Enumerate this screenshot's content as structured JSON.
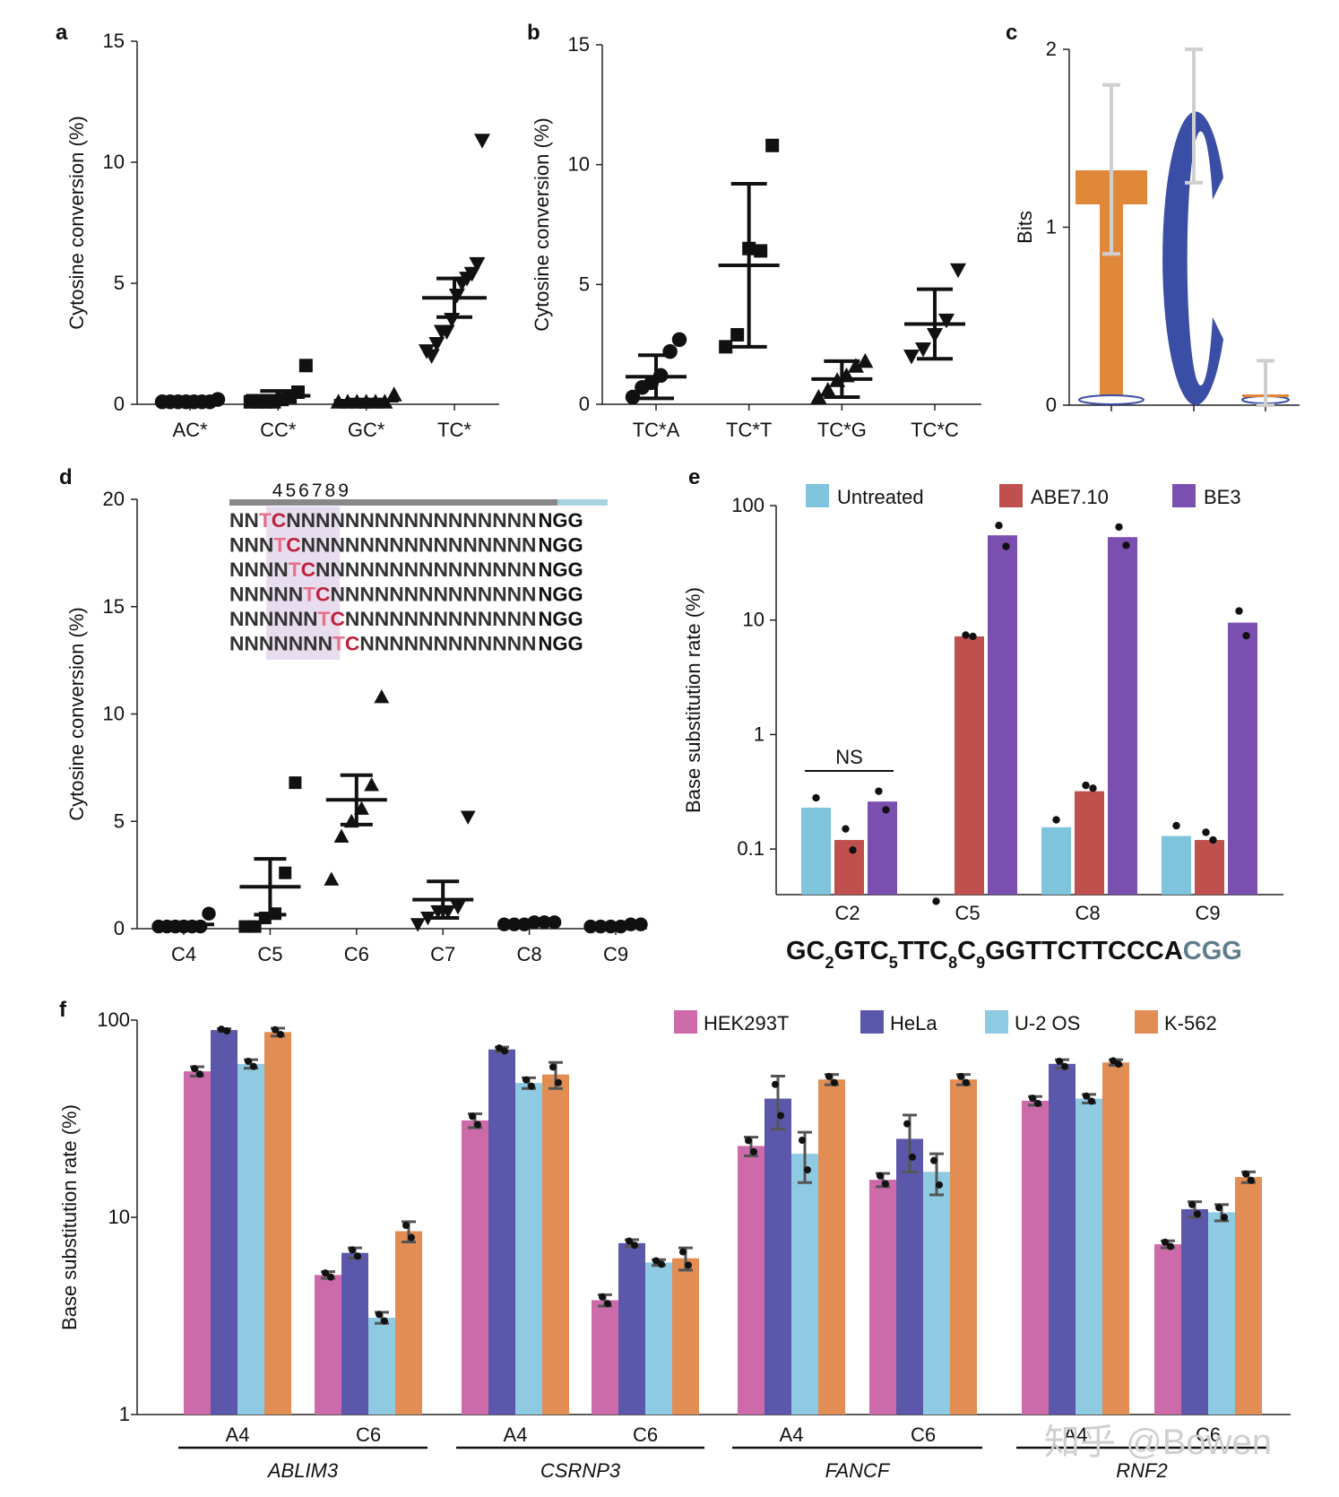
{
  "panels": {
    "a": "a",
    "b": "b",
    "c": "c",
    "d": "d",
    "e": "e",
    "f": "f"
  },
  "watermark": "知乎 @Bowen",
  "colors": {
    "untreated": "#7ec4dc",
    "abe": "#c0504d",
    "be3": "#7b4fb0",
    "hek": "#cc6aaa",
    "hela": "#5b58ab",
    "u2os": "#8ecae2",
    "k562": "#e18d53",
    "logo_t": "#e0883a",
    "logo_c": "#3b4ea5",
    "grid": "#222"
  },
  "chart_data": [
    {
      "id": "a",
      "type": "scatter",
      "ylabel": "Cytosine conversion (%)",
      "ylim": [
        0,
        15
      ],
      "yticks": [
        "0",
        "5",
        "10",
        "15"
      ],
      "categories": [
        "AC*",
        "CC*",
        "GC*",
        "TC*"
      ],
      "markers": [
        "circle",
        "square",
        "triangle-up",
        "triangle-down"
      ],
      "points": [
        [
          0.1,
          0.1,
          0.1,
          0.1,
          0.1,
          0.1,
          0.1,
          0.2
        ],
        [
          0.1,
          0.1,
          0.1,
          0.1,
          0.2,
          0.3,
          0.5,
          1.6
        ],
        [
          0.1,
          0.1,
          0.1,
          0.1,
          0.1,
          0.1,
          0.4
        ],
        [
          2.2,
          2.0,
          2.5,
          3.0,
          3.0,
          3.5,
          4.5,
          5.0,
          5.2,
          5.4,
          5.8,
          10.9
        ]
      ],
      "means": [
        0.1,
        0.35,
        0.15,
        4.4
      ],
      "sem": [
        0.05,
        0.2,
        0.05,
        0.8
      ]
    },
    {
      "id": "b",
      "type": "scatter",
      "ylabel": "Cytosine conversion (%)",
      "ylim": [
        0,
        15
      ],
      "yticks": [
        "0",
        "5",
        "10",
        "15"
      ],
      "categories": [
        "TC*A",
        "TC*T",
        "TC*G",
        "TC*C"
      ],
      "markers": [
        "circle",
        "square",
        "triangle-up",
        "triangle-down"
      ],
      "points": [
        [
          0.3,
          0.7,
          0.9,
          1.2,
          2.2,
          2.7
        ],
        [
          2.4,
          2.9,
          6.5,
          6.4,
          10.8
        ],
        [
          0.3,
          0.6,
          1.0,
          1.2,
          1.6,
          1.8
        ],
        [
          2.0,
          2.3,
          2.9,
          3.5,
          5.6
        ]
      ],
      "means": [
        1.15,
        5.8,
        1.05,
        3.35
      ],
      "sem": [
        0.9,
        3.4,
        0.75,
        1.45
      ]
    },
    {
      "id": "c",
      "type": "logo",
      "ylabel": "Bits",
      "ylim": [
        0,
        2
      ],
      "yticks": [
        "0",
        "1",
        "2"
      ],
      "letters": [
        {
          "letter": "T",
          "height": 1.32,
          "error_top": 1.8,
          "error_bottom": 0.85
        },
        {
          "letter": "C",
          "height": 1.65,
          "error_top": 2.0,
          "error_bottom": 1.25
        },
        {
          "letter": "C",
          "height": 0.05,
          "error_top": 0.25,
          "error_bottom": 0.0
        }
      ]
    },
    {
      "id": "d",
      "type": "scatter",
      "ylabel": "Cytosine conversion (%)",
      "ylim": [
        0,
        20
      ],
      "yticks": [
        "0",
        "5",
        "10",
        "15",
        "20"
      ],
      "categories": [
        "C4",
        "C5",
        "C6",
        "C7",
        "C8",
        "C9"
      ],
      "markers": [
        "circle",
        "square",
        "triangle-up",
        "triangle-down",
        "circle",
        "circle"
      ],
      "points": [
        [
          0.1,
          0.1,
          0.1,
          0.1,
          0.1,
          0.1,
          0.7
        ],
        [
          0.1,
          0.1,
          0.5,
          0.7,
          2.6,
          6.8
        ],
        [
          2.3,
          4.3,
          5.0,
          5.6,
          6.7,
          10.8
        ],
        [
          0.2,
          0.5,
          0.8,
          0.8,
          1.0,
          5.2
        ],
        [
          0.2,
          0.2,
          0.2,
          0.3,
          0.3,
          0.3
        ],
        [
          0.1,
          0.1,
          0.1,
          0.1,
          0.2,
          0.2
        ]
      ],
      "means": [
        0.2,
        1.95,
        6.0,
        1.35,
        0.25,
        0.12
      ],
      "sem": [
        0.1,
        1.3,
        1.15,
        0.85,
        0.05,
        0.03
      ]
    },
    {
      "id": "e",
      "type": "bar",
      "scale": "log",
      "ylabel": "Base substitution rate (%)",
      "ylim": [
        0.04,
        100
      ],
      "yticks": [
        "0.1",
        "1",
        "10",
        "100"
      ],
      "ytick_values": [
        0.1,
        1,
        10,
        100
      ],
      "categories": [
        "C2",
        "C5",
        "C8",
        "C9"
      ],
      "series": [
        {
          "name": "Untreated",
          "color": "#7ec4dc",
          "values": [
            0.23,
            0.035,
            0.155,
            0.13
          ],
          "points": [
            [
              0.28
            ],
            [
              0.035
            ],
            [
              0.18
            ],
            [
              0.16
            ]
          ]
        },
        {
          "name": "ABE7.10",
          "color": "#c0504d",
          "values": [
            0.12,
            7.2,
            0.32,
            0.12
          ],
          "points": [
            [
              0.15,
              0.098
            ],
            [
              7.4,
              7.2
            ],
            [
              0.36,
              0.34
            ],
            [
              0.14,
              0.12
            ]
          ]
        },
        {
          "name": "BE3",
          "color": "#7b4fb0",
          "values": [
            0.26,
            55,
            53,
            9.5
          ],
          "points": [
            [
              0.32,
              0.22
            ],
            [
              67,
              44
            ],
            [
              65,
              45
            ],
            [
              12,
              7.3
            ]
          ]
        }
      ],
      "annotation": "NS",
      "sequence": [
        {
          "t": "GC",
          "sub": false
        },
        {
          "t": "2",
          "sub": true
        },
        {
          "t": "GTC",
          "sub": false
        },
        {
          "t": "5",
          "sub": true
        },
        {
          "t": "TTC",
          "sub": false
        },
        {
          "t": "8",
          "sub": true
        },
        {
          "t": "C",
          "sub": false
        },
        {
          "t": "9",
          "sub": true
        },
        {
          "t": "GGTTCTTCCCA",
          "sub": false
        },
        {
          "t": "CGG",
          "sub": false,
          "pam": true
        }
      ]
    },
    {
      "id": "f",
      "type": "bar",
      "scale": "log",
      "ylabel": "Base substitution rate (%)",
      "ylim": [
        1,
        100
      ],
      "yticks": [
        "1",
        "10",
        "100"
      ],
      "ytick_values": [
        1,
        10,
        100
      ],
      "genes": [
        "ABLIM3",
        "CSRNP3",
        "FANCF",
        "RNF2"
      ],
      "categories": [
        "A4",
        "C6",
        "A4",
        "C6",
        "A4",
        "C6",
        "A4",
        "C6"
      ],
      "series": [
        {
          "name": "HEK293T",
          "color": "#cc6aaa",
          "values": [
            55,
            5.1,
            31,
            3.8,
            23,
            15.5,
            39,
            7.3
          ],
          "err": [
            3,
            0.2,
            2.5,
            0.25,
            2.5,
            1.2,
            2,
            0.3
          ]
        },
        {
          "name": "HeLa",
          "color": "#5b58ab",
          "values": [
            89,
            6.6,
            71,
            7.4,
            40,
            25,
            60,
            11
          ],
          "err": [
            1.5,
            0.4,
            2,
            0.3,
            12,
            8,
            3,
            1
          ]
        },
        {
          "name": "U-2 OS",
          "color": "#8ecae2",
          "values": [
            60,
            3.1,
            48,
            5.9,
            21,
            17,
            40,
            10.6
          ],
          "err": [
            3,
            0.2,
            3,
            0.2,
            6,
            4,
            2,
            1
          ]
        },
        {
          "name": "K-562",
          "color": "#e18d53",
          "values": [
            87,
            8.5,
            53,
            6.2,
            50,
            50,
            61,
            16
          ],
          "err": [
            4,
            1,
            8,
            0.8,
            3,
            3,
            2,
            1
          ]
        }
      ]
    }
  ],
  "panel_d_sequences": {
    "positions_label": "456789",
    "rows": [
      {
        "pre": "NN",
        "tc": "TC",
        "post": "NNNNNNNNNNNNNNNNN",
        "pam": "NGG"
      },
      {
        "pre": "NNN",
        "tc": "TC",
        "post": "NNNNNNNNNNNNNNNN",
        "pam": "NGG"
      },
      {
        "pre": "NNNN",
        "tc": "TC",
        "post": "NNNNNNNNNNNNNNN",
        "pam": "NGG"
      },
      {
        "pre": "NNNNN",
        "tc": "TC",
        "post": "NNNNNNNNNNNNNN",
        "pam": "NGG"
      },
      {
        "pre": "NNNNNN",
        "tc": "TC",
        "post": "NNNNNNNNNNNNN",
        "pam": "NGG"
      },
      {
        "pre": "NNNNNNN",
        "tc": "TC",
        "post": "NNNNNNNNNNNN",
        "pam": "NGG"
      }
    ]
  }
}
